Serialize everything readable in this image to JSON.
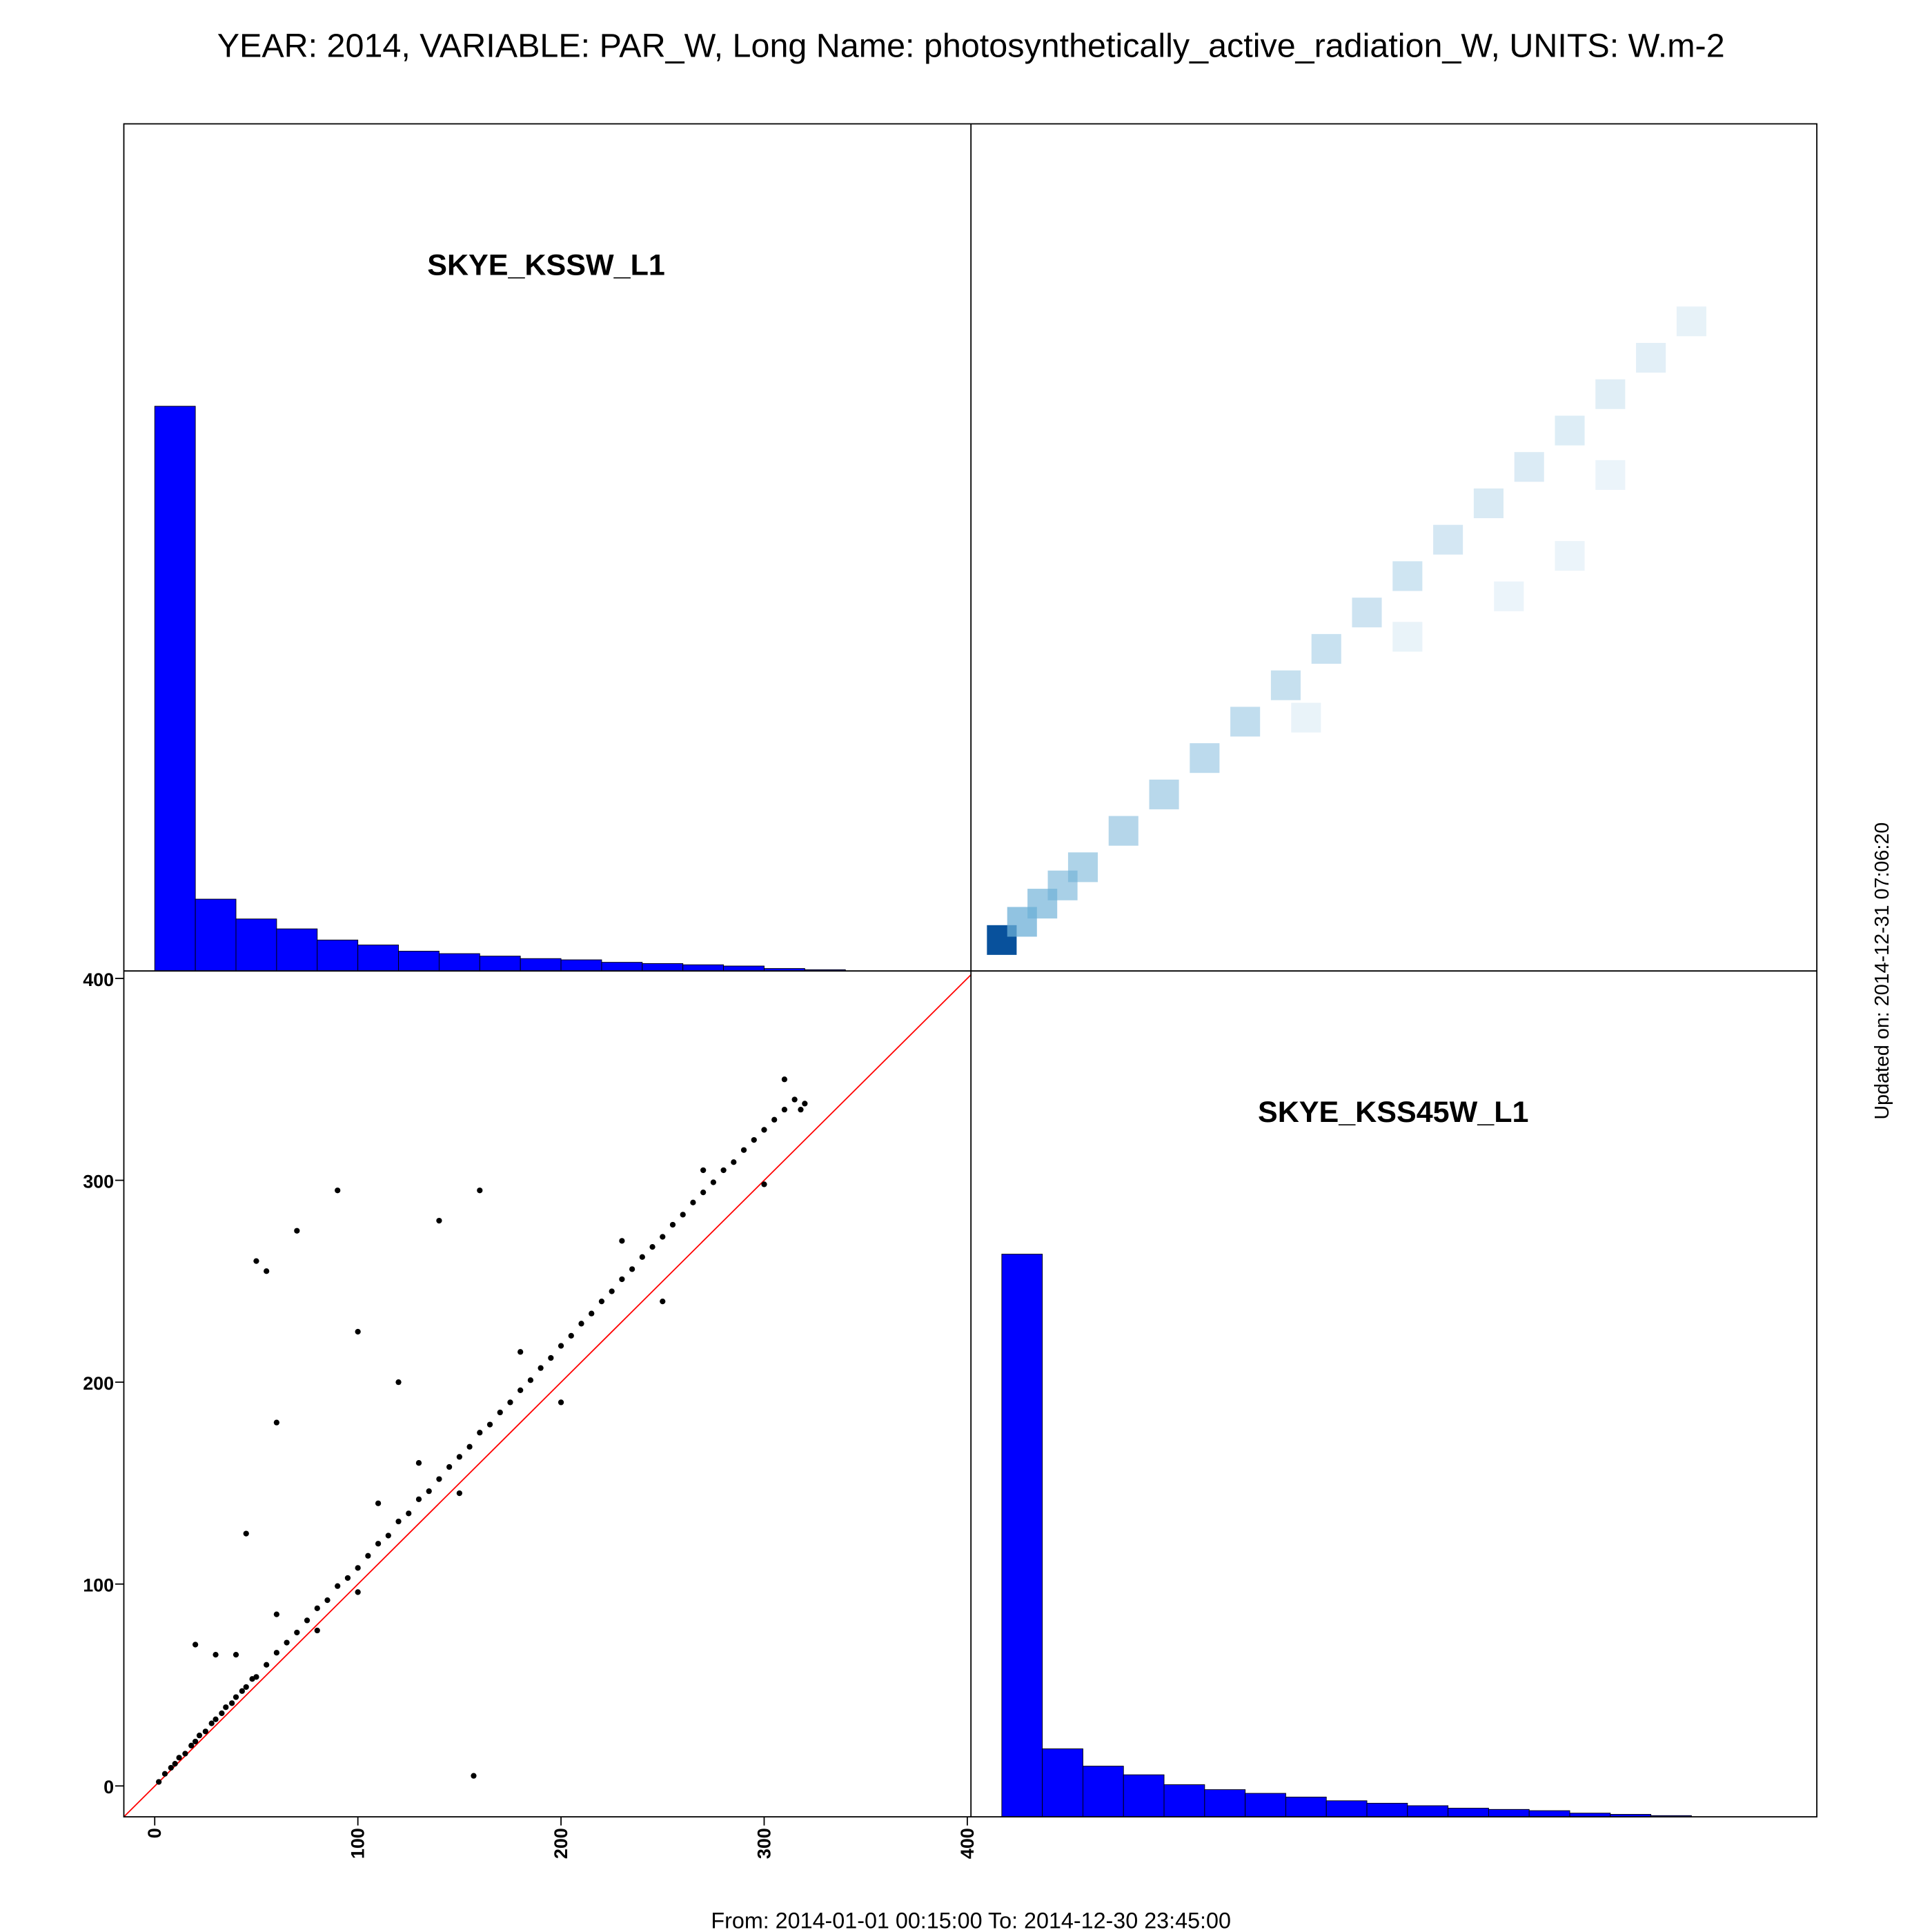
{
  "title": "YEAR: 2014, VARIABLE: PAR_W, Long Name: photosynthetically_active_radiation_W, UNITS: W.m-2",
  "footer": "From: 2014-01-01 00:15:00 To: 2014-12-30 23:45:00",
  "updated": "Updated on: 2014-12-31 07:06:20",
  "chart_data": [
    {
      "type": "histogram",
      "title": "SKYE_KSSW_L1",
      "bins": [
        0,
        20,
        40,
        60,
        80,
        100,
        120,
        140,
        160,
        180,
        200,
        220,
        240,
        260,
        280,
        300,
        320,
        340
      ],
      "values": [
        456,
        58,
        42,
        34,
        25,
        21,
        16,
        14,
        12,
        10,
        9,
        7,
        6,
        5,
        4,
        2,
        1
      ],
      "color": "#0000ff",
      "xlim": [
        -15.2,
        401.8
      ],
      "ylim": [
        0,
        684
      ]
    },
    {
      "type": "density",
      "x": [
        0,
        10,
        20,
        30,
        40,
        60,
        80,
        100,
        120,
        140,
        160,
        180,
        200,
        220,
        240,
        260,
        280,
        300,
        320,
        340,
        150,
        200,
        250,
        280,
        300
      ],
      "y": [
        0,
        9,
        18,
        27,
        36,
        54,
        72,
        90,
        108,
        126,
        144,
        162,
        180,
        198,
        216,
        234,
        252,
        270,
        288,
        306,
        110,
        150,
        170,
        190,
        230
      ],
      "values": [
        100,
        40,
        35,
        30,
        28,
        25,
        24,
        22,
        20,
        18,
        17,
        15,
        14,
        12,
        10,
        9,
        8,
        7,
        6,
        4,
        3,
        3,
        2,
        2,
        2
      ],
      "color": "#08519c",
      "xlim": [
        -15.2,
        401.8
      ],
      "ylim": [
        -15.3,
        403.7
      ]
    },
    {
      "type": "scatter",
      "x": [
        2,
        5,
        8,
        10,
        12,
        15,
        18,
        20,
        22,
        25,
        28,
        30,
        33,
        35,
        38,
        40,
        43,
        45,
        48,
        50,
        55,
        60,
        65,
        70,
        75,
        80,
        85,
        90,
        95,
        100,
        105,
        110,
        115,
        120,
        125,
        130,
        135,
        140,
        145,
        150,
        155,
        160,
        165,
        170,
        175,
        180,
        185,
        190,
        195,
        200,
        205,
        210,
        215,
        220,
        225,
        230,
        235,
        240,
        245,
        250,
        255,
        260,
        265,
        270,
        275,
        280,
        285,
        290,
        295,
        300,
        305,
        310,
        315,
        320,
        150,
        250,
        300,
        200,
        100,
        80,
        180,
        230,
        270,
        130,
        110,
        60,
        40,
        50,
        55,
        70,
        90,
        100,
        120,
        140,
        160,
        20,
        30,
        45,
        60,
        157,
        318,
        310
      ],
      "y": [
        2,
        6,
        9,
        11,
        14,
        16,
        20,
        22,
        25,
        27,
        31,
        33,
        36,
        39,
        41,
        44,
        47,
        49,
        53,
        54,
        60,
        66,
        71,
        76,
        82,
        88,
        92,
        99,
        103,
        108,
        114,
        120,
        124,
        131,
        135,
        142,
        146,
        152,
        158,
        163,
        168,
        175,
        179,
        185,
        190,
        196,
        201,
        207,
        212,
        218,
        223,
        229,
        234,
        240,
        245,
        251,
        256,
        262,
        267,
        272,
        278,
        283,
        289,
        294,
        299,
        305,
        309,
        315,
        320,
        325,
        330,
        335,
        340,
        338,
        145,
        240,
        298,
        190,
        96,
        77,
        215,
        270,
        305,
        160,
        140,
        85,
        65,
        260,
        255,
        275,
        295,
        225,
        200,
        280,
        295,
        70,
        65,
        125,
        180,
        5,
        335,
        350
      ],
      "color": "#000000",
      "reference_line_color": "#ff0000",
      "xlim": [
        -15.2,
        401.8
      ],
      "ylim": [
        -15.3,
        403.7
      ],
      "xticks": [
        0,
        100,
        200,
        300,
        400
      ],
      "yticks": [
        0,
        100,
        200,
        300,
        400
      ]
    },
    {
      "type": "histogram",
      "title": "SKYE_KSS45W_L1",
      "bins": [
        0,
        20,
        40,
        60,
        80,
        100,
        120,
        140,
        160,
        180,
        200,
        220,
        240,
        260,
        280,
        300,
        320,
        340
      ],
      "values": [
        455,
        55,
        41,
        34,
        26,
        22,
        19,
        16,
        13,
        11,
        9,
        7,
        6,
        5,
        3,
        2,
        1
      ],
      "color": "#0000ff",
      "xlim": [
        -15.2,
        401.8
      ],
      "ylim": [
        0,
        684
      ]
    }
  ]
}
